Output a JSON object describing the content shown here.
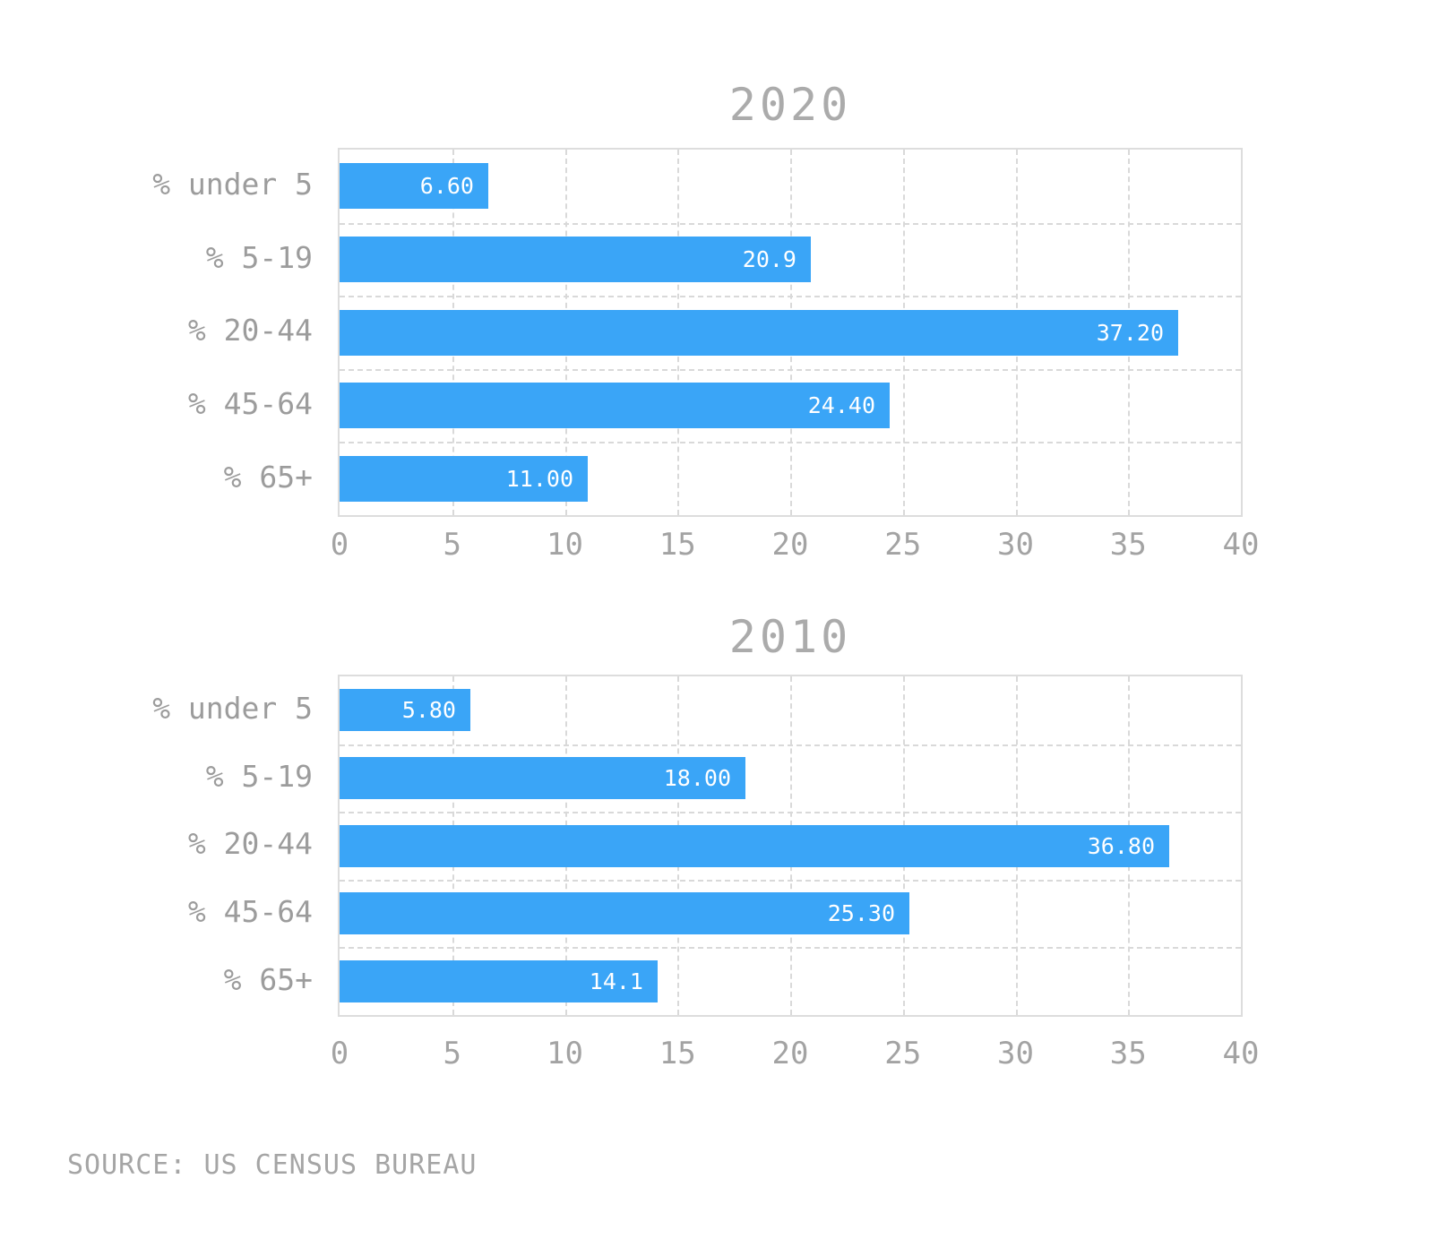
{
  "source": "SOURCE: US CENSUS BUREAU",
  "colors": {
    "bar": "#3AA5F7",
    "title_text": "#ABABAB",
    "axis_text": "#A3A3A3",
    "category_text": "#9C9C9C",
    "bar_label_text": "#FFFFFF",
    "plot_border": "#DDDDDD",
    "gridline": "#D9D9D9",
    "source_text": "#A5A5A5",
    "background": "#FFFFFF"
  },
  "chart_data": [
    {
      "type": "bar",
      "orientation": "horizontal",
      "title": "2020",
      "categories": [
        "% under 5",
        "% 5-19",
        "% 20-44",
        "% 45-64",
        "% 65+"
      ],
      "values": [
        6.6,
        20.9,
        37.2,
        24.4,
        11.0
      ],
      "value_labels": [
        "6.60",
        "20.9",
        "37.20",
        "24.40",
        "11.00"
      ],
      "xlabel": "",
      "ylabel": "",
      "xlim": [
        0,
        40
      ],
      "xticks": [
        0,
        5,
        10,
        15,
        20,
        25,
        30,
        35,
        40
      ],
      "grid": true,
      "legend": false
    },
    {
      "type": "bar",
      "orientation": "horizontal",
      "title": "2010",
      "categories": [
        "% under 5",
        "% 5-19",
        "% 20-44",
        "% 45-64",
        "% 65+"
      ],
      "values": [
        5.8,
        18.0,
        36.8,
        25.3,
        14.1
      ],
      "value_labels": [
        "5.80",
        "18.00",
        "36.80",
        "25.30",
        "14.1"
      ],
      "xlabel": "",
      "ylabel": "",
      "xlim": [
        0,
        40
      ],
      "xticks": [
        0,
        5,
        10,
        15,
        20,
        25,
        30,
        35,
        40
      ],
      "grid": true,
      "legend": false
    }
  ]
}
